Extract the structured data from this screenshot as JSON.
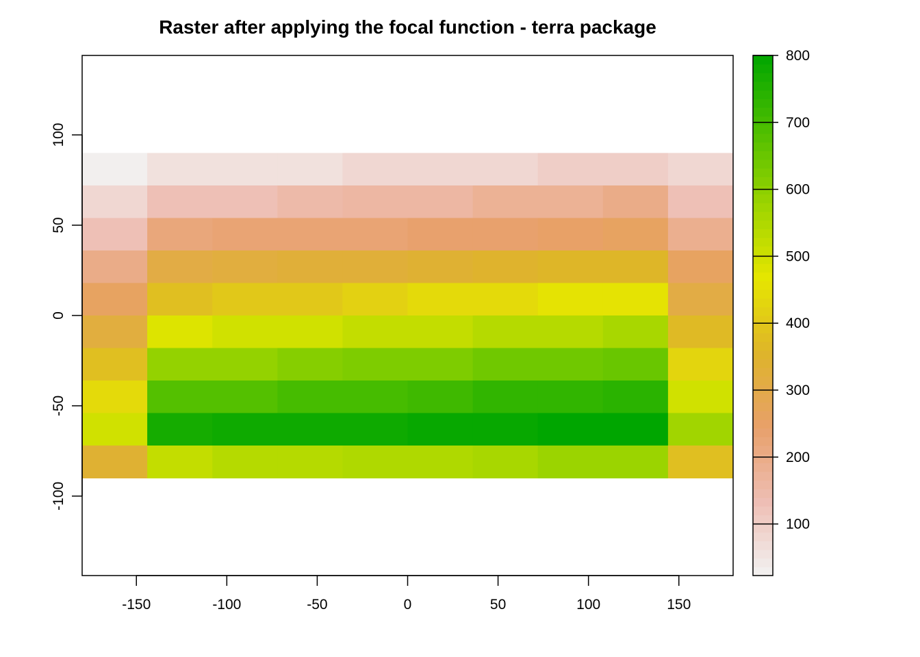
{
  "chart_data": {
    "type": "heatmap",
    "title": "Raster after applying the focal function - terra package",
    "xlabel": "",
    "ylabel": "",
    "xlim": [
      -180,
      180
    ],
    "ylim": [
      -144,
      144
    ],
    "x_ticks": [
      -150,
      -100,
      -50,
      0,
      50,
      100,
      150
    ],
    "y_ticks": [
      -100,
      -50,
      0,
      50,
      100
    ],
    "x_tick_labels": [
      "-150",
      "-100",
      "-50",
      "0",
      "50",
      "100",
      "150"
    ],
    "y_tick_labels": [
      "-100",
      "-50",
      "0",
      "50",
      "100"
    ],
    "grid": false,
    "raster_extent": {
      "xmin": -180,
      "xmax": 180,
      "ymin": -90,
      "ymax": 90
    },
    "ncols": 10,
    "nrows": 10,
    "values": [
      [
        30,
        60,
        60,
        60,
        80,
        80,
        80,
        100,
        100,
        80
      ],
      [
        80,
        130,
        130,
        150,
        160,
        160,
        180,
        180,
        200,
        130
      ],
      [
        130,
        220,
        230,
        230,
        230,
        240,
        240,
        250,
        260,
        190
      ],
      [
        200,
        310,
        320,
        330,
        330,
        340,
        350,
        360,
        360,
        260
      ],
      [
        260,
        380,
        400,
        400,
        420,
        440,
        440,
        460,
        460,
        310
      ],
      [
        320,
        480,
        500,
        500,
        520,
        520,
        540,
        540,
        560,
        370
      ],
      [
        380,
        590,
        590,
        610,
        620,
        620,
        640,
        640,
        650,
        430
      ],
      [
        440,
        680,
        680,
        700,
        700,
        710,
        730,
        730,
        740,
        500
      ],
      [
        500,
        770,
        780,
        780,
        780,
        790,
        790,
        800,
        800,
        570
      ],
      [
        340,
        520,
        540,
        540,
        550,
        550,
        560,
        580,
        580,
        380
      ]
    ],
    "legend": {
      "placement": "right",
      "min": 23,
      "max": 800,
      "ticks": [
        100,
        200,
        300,
        400,
        500,
        600,
        700,
        800
      ],
      "tick_labels": [
        "100",
        "200",
        "300",
        "400",
        "500",
        "600",
        "700",
        "800"
      ],
      "palette": [
        "#F2F2F2",
        "#EEBEB4",
        "#E8A06A",
        "#DEB42A",
        "#E6E600",
        "#9CD400",
        "#4EBE00",
        "#00A600"
      ]
    }
  }
}
